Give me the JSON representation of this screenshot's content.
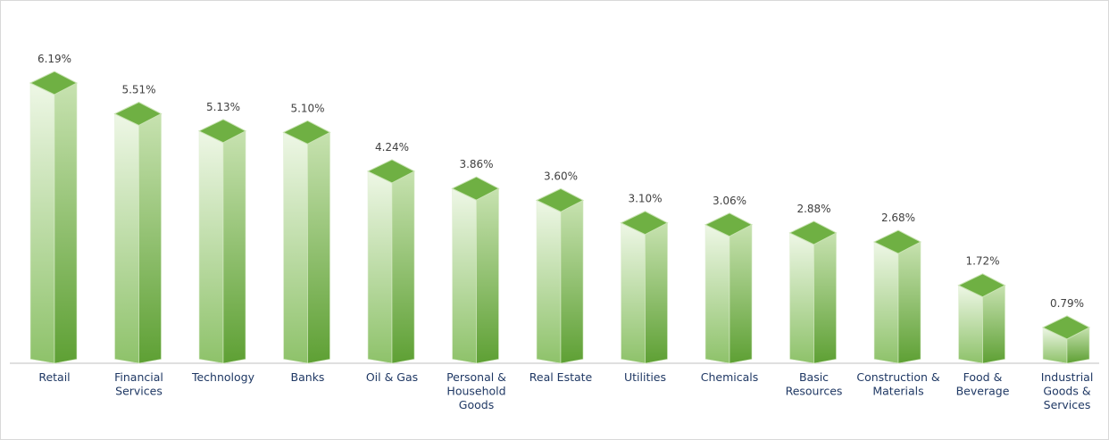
{
  "chart_data": {
    "type": "bar",
    "title": "",
    "xlabel": "",
    "ylabel": "",
    "ylim": [
      0,
      6.19
    ],
    "grid": false,
    "legend": "none",
    "style": "3d-column",
    "colors": {
      "bar_front_light": "#eef7e6",
      "bar_front_dark": "#8ec26a",
      "bar_side_light": "#c7e2b0",
      "bar_side_dark": "#5ea034",
      "bar_top": "#6fb043",
      "bar_top_edge": "#c9e3b3",
      "value_text": "#404040",
      "category_text": "#1f3864",
      "axis": "#bfbfbf"
    },
    "categories": [
      [
        "Retail"
      ],
      [
        "Financial",
        "Services"
      ],
      [
        "Technology"
      ],
      [
        "Banks"
      ],
      [
        "Oil & Gas"
      ],
      [
        "Personal &",
        "Household",
        "Goods"
      ],
      [
        "Real Estate"
      ],
      [
        "Utilities"
      ],
      [
        "Chemicals"
      ],
      [
        "Basic",
        "Resources"
      ],
      [
        "Construction &",
        "Materials"
      ],
      [
        "Food &",
        "Beverage"
      ],
      [
        "Industrial",
        "Goods &",
        "Services"
      ]
    ],
    "values": [
      6.19,
      5.51,
      5.13,
      5.1,
      4.24,
      3.86,
      3.6,
      3.1,
      3.06,
      2.88,
      2.68,
      1.72,
      0.79
    ],
    "value_labels": [
      "6.19%",
      "5.51%",
      "5.13%",
      "5.10%",
      "4.24%",
      "3.86%",
      "3.60%",
      "3.10%",
      "3.06%",
      "2.88%",
      "2.68%",
      "1.72%",
      "0.79%"
    ]
  }
}
